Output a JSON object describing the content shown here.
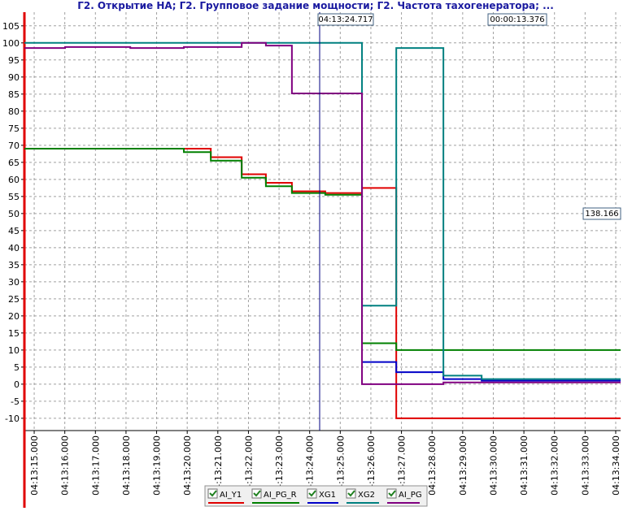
{
  "chart_data": {
    "type": "line",
    "step": "post",
    "title": "Г2. Открытие НА; Г2. Групповое задание мощности; Г2. Частота тахогенератора; ...",
    "x": [
      14.68,
      16.01,
      18.14,
      19.89,
      20.77,
      21.78,
      22.57,
      23.42,
      24.51,
      25.71,
      26.83,
      28.37,
      29.62,
      34.16
    ],
    "series": [
      {
        "name": "AI_Y1",
        "color": "#e00000",
        "values": [
          69,
          69,
          69,
          69,
          66.5,
          61.5,
          59,
          56.5,
          56,
          57.5,
          -10,
          -10,
          -10,
          -10
        ]
      },
      {
        "name": "AI_PG_R",
        "color": "#008000",
        "values": [
          69,
          69,
          69,
          68,
          65.5,
          60.5,
          58,
          56,
          55.5,
          12,
          10,
          10,
          10,
          10
        ]
      },
      {
        "name": "XG1",
        "color": "#0000c8",
        "values": [
          null,
          null,
          null,
          null,
          null,
          null,
          null,
          null,
          null,
          6.5,
          3.5,
          1.5,
          1,
          1
        ]
      },
      {
        "name": "XG2",
        "color": "#008080",
        "values": [
          100,
          100,
          100,
          100,
          100,
          100,
          100,
          100,
          100,
          23,
          98.5,
          2.5,
          1.5,
          1.5
        ]
      },
      {
        "name": "AI_PG",
        "color": "#800080",
        "values": [
          98.5,
          98.8,
          98.5,
          98.8,
          98.8,
          100,
          99.2,
          85.2,
          85.2,
          0,
          0,
          0.5,
          0.5,
          0.5
        ]
      }
    ],
    "xlim": [
      14.68,
      34.16
    ],
    "xticks": [
      {
        "value": 15,
        "label": "04:13:15.000"
      },
      {
        "value": 16,
        "label": "04:13:16.000"
      },
      {
        "value": 17,
        "label": "04:13:17.000"
      },
      {
        "value": 18,
        "label": "04:13:18.000"
      },
      {
        "value": 19,
        "label": "04:13:19.000"
      },
      {
        "value": 20,
        "label": "04:13:20.000"
      },
      {
        "value": 21,
        "label": "04:13:21.000"
      },
      {
        "value": 22,
        "label": "04:13:22.000"
      },
      {
        "value": 23,
        "label": "04:13:23.000"
      },
      {
        "value": 24,
        "label": "04:13:24.000"
      },
      {
        "value": 25,
        "label": "04:13:25.000"
      },
      {
        "value": 26,
        "label": "04:13:26.000"
      },
      {
        "value": 27,
        "label": "04:13:27.000"
      },
      {
        "value": 28,
        "label": "04:13:28.000"
      },
      {
        "value": 29,
        "label": "04:13:29.000"
      },
      {
        "value": 30,
        "label": "04:13:30.000"
      },
      {
        "value": 31,
        "label": "04:13:31.000"
      },
      {
        "value": 32,
        "label": "04:13:32.000"
      },
      {
        "value": 33,
        "label": "04:13:33.000"
      },
      {
        "value": 34,
        "label": "04:13:34.000"
      }
    ],
    "ylim": [
      -13.6,
      109
    ],
    "yticks": [
      -10,
      -5,
      0,
      5,
      10,
      15,
      20,
      25,
      30,
      35,
      40,
      45,
      50,
      55,
      60,
      65,
      70,
      75,
      80,
      85,
      90,
      95,
      100,
      105
    ],
    "grid": true,
    "annotations": [
      "04:13:24.717",
      "00:00:13.376",
      "138.166"
    ]
  }
}
